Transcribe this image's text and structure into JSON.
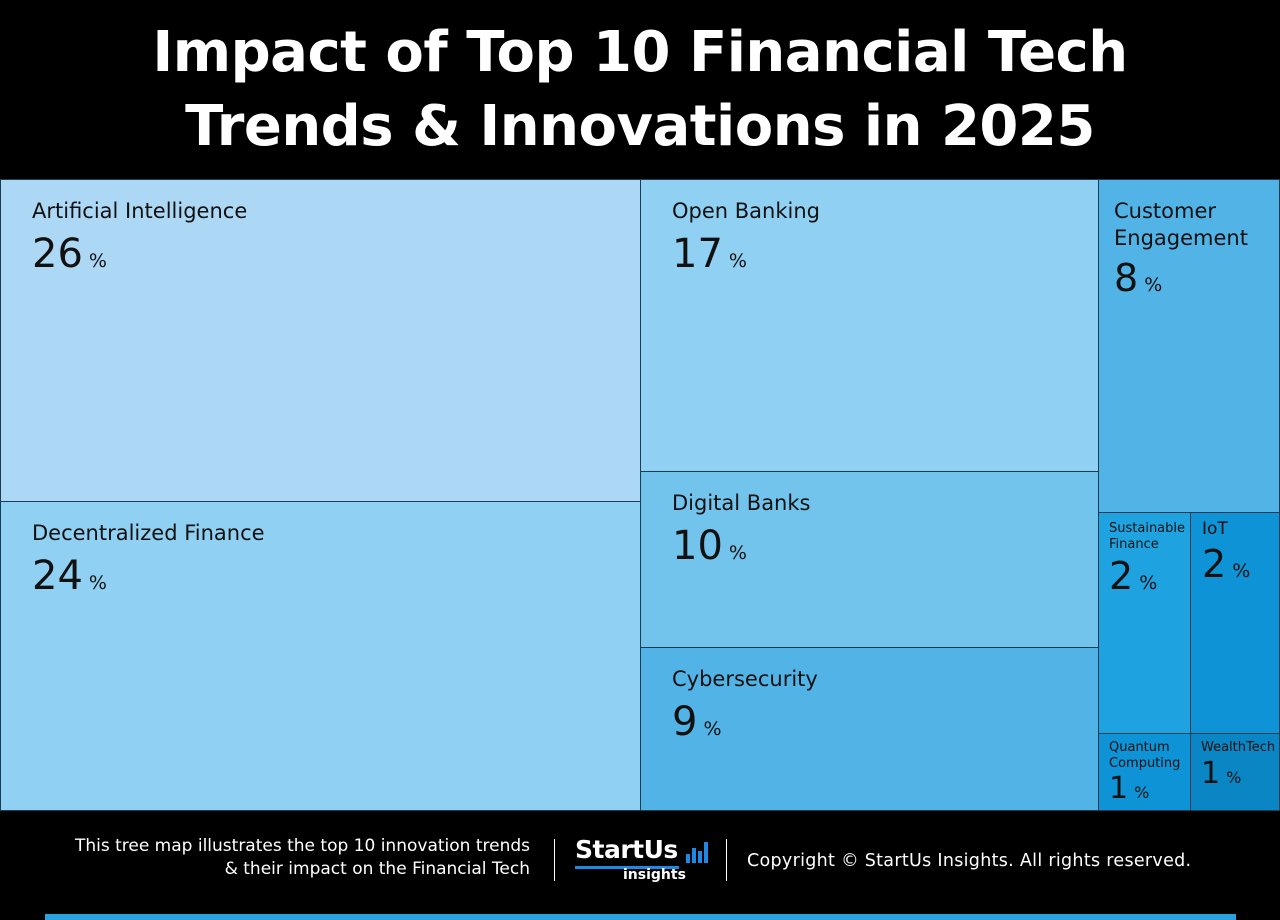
{
  "header": {
    "title_line1": "Impact of Top 10 Financial Tech",
    "title_line2": "Trends & Innovations in 2025"
  },
  "chart_data": {
    "type": "treemap",
    "unit": "%",
    "items": [
      {
        "label": "Artificial Intelligence",
        "value": 26,
        "color": "#add8f5"
      },
      {
        "label": "Decentralized Finance",
        "value": 24,
        "color": "#90d0f2"
      },
      {
        "label": "Open Banking",
        "value": 17,
        "color": "#90d0f2"
      },
      {
        "label": "Digital Banks",
        "value": 10,
        "color": "#73c4ed"
      },
      {
        "label": "Cybersecurity",
        "value": 9,
        "color": "#52b4e6"
      },
      {
        "label": "Customer Engagement",
        "value": 8,
        "color": "#52b4e6"
      },
      {
        "label": "Sustainable Finance",
        "value": 2,
        "color": "#1ea3e0"
      },
      {
        "label": "IoT",
        "value": 2,
        "color": "#0d93d6"
      },
      {
        "label": "Quantum Computing",
        "value": 1,
        "color": "#0d93d6"
      },
      {
        "label": "WealthTech",
        "value": 1,
        "color": "#0b86c4"
      }
    ]
  },
  "footer": {
    "caption_line1": "This tree map illustrates the top 10 innovation trends",
    "caption_line2": "& their impact on the Financial Tech",
    "logo_text": "StartUs",
    "logo_sub": "insights",
    "copyright": "Copyright © StartUs Insights. All rights reserved."
  }
}
